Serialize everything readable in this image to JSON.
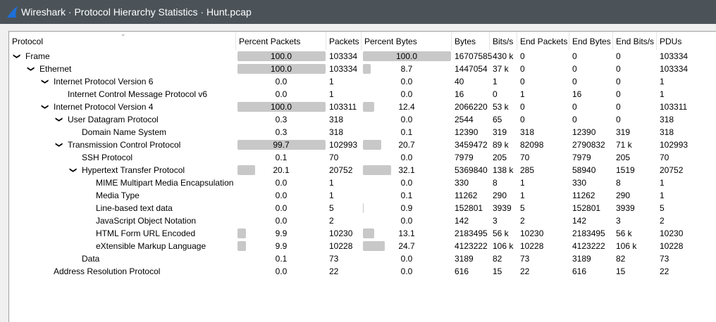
{
  "window": {
    "title": "Wireshark · Protocol Hierarchy Statistics · Hunt.pcap",
    "icon": "wireshark-fin-icon"
  },
  "columns": [
    "Protocol",
    "Percent Packets",
    "Packets",
    "Percent Bytes",
    "Bytes",
    "Bits/s",
    "End Packets",
    "End Bytes",
    "End Bits/s",
    "PDUs"
  ],
  "rows": [
    {
      "level": 0,
      "expanded": true,
      "protocol": "Frame",
      "percent_packets": "100.0",
      "packets": "103334",
      "percent_bytes": "100.0",
      "bytes": "16707585",
      "bits_s": "430 k",
      "end_packets": "0",
      "end_bytes": "0",
      "end_bits_s": "0",
      "pdus": "103334"
    },
    {
      "level": 1,
      "expanded": true,
      "protocol": "Ethernet",
      "percent_packets": "100.0",
      "packets": "103334",
      "percent_bytes": "8.7",
      "bytes": "1447054",
      "bits_s": "37 k",
      "end_packets": "0",
      "end_bytes": "0",
      "end_bits_s": "0",
      "pdus": "103334"
    },
    {
      "level": 2,
      "expanded": true,
      "protocol": "Internet Protocol Version 6",
      "percent_packets": "0.0",
      "packets": "1",
      "percent_bytes": "0.0",
      "bytes": "40",
      "bits_s": "1",
      "end_packets": "0",
      "end_bytes": "0",
      "end_bits_s": "0",
      "pdus": "1"
    },
    {
      "level": 3,
      "protocol": "Internet Control Message Protocol v6",
      "percent_packets": "0.0",
      "packets": "1",
      "percent_bytes": "0.0",
      "bytes": "16",
      "bits_s": "0",
      "end_packets": "1",
      "end_bytes": "16",
      "end_bits_s": "0",
      "pdus": "1"
    },
    {
      "level": 2,
      "expanded": true,
      "protocol": "Internet Protocol Version 4",
      "percent_packets": "100.0",
      "packets": "103311",
      "percent_bytes": "12.4",
      "bytes": "2066220",
      "bits_s": "53 k",
      "end_packets": "0",
      "end_bytes": "0",
      "end_bits_s": "0",
      "pdus": "103311"
    },
    {
      "level": 3,
      "expanded": true,
      "protocol": "User Datagram Protocol",
      "percent_packets": "0.3",
      "packets": "318",
      "percent_bytes": "0.0",
      "bytes": "2544",
      "bits_s": "65",
      "end_packets": "0",
      "end_bytes": "0",
      "end_bits_s": "0",
      "pdus": "318"
    },
    {
      "level": 4,
      "protocol": "Domain Name System",
      "percent_packets": "0.3",
      "packets": "318",
      "percent_bytes": "0.1",
      "bytes": "12390",
      "bits_s": "319",
      "end_packets": "318",
      "end_bytes": "12390",
      "end_bits_s": "319",
      "pdus": "318"
    },
    {
      "level": 3,
      "expanded": true,
      "protocol": "Transmission Control Protocol",
      "percent_packets": "99.7",
      "packets": "102993",
      "percent_bytes": "20.7",
      "bytes": "3459472",
      "bits_s": "89 k",
      "end_packets": "82098",
      "end_bytes": "2790832",
      "end_bits_s": "71 k",
      "pdus": "102993"
    },
    {
      "level": 4,
      "protocol": "SSH Protocol",
      "percent_packets": "0.1",
      "packets": "70",
      "percent_bytes": "0.0",
      "bytes": "7979",
      "bits_s": "205",
      "end_packets": "70",
      "end_bytes": "7979",
      "end_bits_s": "205",
      "pdus": "70"
    },
    {
      "level": 4,
      "expanded": true,
      "protocol": "Hypertext Transfer Protocol",
      "percent_packets": "20.1",
      "packets": "20752",
      "percent_bytes": "32.1",
      "bytes": "5369840",
      "bits_s": "138 k",
      "end_packets": "285",
      "end_bytes": "58940",
      "end_bits_s": "1519",
      "pdus": "20752"
    },
    {
      "level": 5,
      "protocol": "MIME Multipart Media Encapsulation",
      "percent_packets": "0.0",
      "packets": "1",
      "percent_bytes": "0.0",
      "bytes": "330",
      "bits_s": "8",
      "end_packets": "1",
      "end_bytes": "330",
      "end_bits_s": "8",
      "pdus": "1"
    },
    {
      "level": 5,
      "protocol": "Media Type",
      "percent_packets": "0.0",
      "packets": "1",
      "percent_bytes": "0.1",
      "bytes": "11262",
      "bits_s": "290",
      "end_packets": "1",
      "end_bytes": "11262",
      "end_bits_s": "290",
      "pdus": "1"
    },
    {
      "level": 5,
      "protocol": "Line-based text data",
      "percent_packets": "0.0",
      "packets": "5",
      "percent_bytes": "0.9",
      "bytes": "152801",
      "bits_s": "3939",
      "end_packets": "5",
      "end_bytes": "152801",
      "end_bits_s": "3939",
      "pdus": "5"
    },
    {
      "level": 5,
      "protocol": "JavaScript Object Notation",
      "percent_packets": "0.0",
      "packets": "2",
      "percent_bytes": "0.0",
      "bytes": "142",
      "bits_s": "3",
      "end_packets": "2",
      "end_bytes": "142",
      "end_bits_s": "3",
      "pdus": "2"
    },
    {
      "level": 5,
      "protocol": "HTML Form URL Encoded",
      "percent_packets": "9.9",
      "packets": "10230",
      "percent_bytes": "13.1",
      "bytes": "2183495",
      "bits_s": "56 k",
      "end_packets": "10230",
      "end_bytes": "2183495",
      "end_bits_s": "56 k",
      "pdus": "10230"
    },
    {
      "level": 5,
      "protocol": "eXtensible Markup Language",
      "percent_packets": "9.9",
      "packets": "10228",
      "percent_bytes": "24.7",
      "bytes": "4123222",
      "bits_s": "106 k",
      "end_packets": "10228",
      "end_bytes": "4123222",
      "end_bits_s": "106 k",
      "pdus": "10228"
    },
    {
      "level": 4,
      "protocol": "Data",
      "percent_packets": "0.1",
      "packets": "73",
      "percent_bytes": "0.0",
      "bytes": "3189",
      "bits_s": "82",
      "end_packets": "73",
      "end_bytes": "3189",
      "end_bits_s": "82",
      "pdus": "73"
    },
    {
      "level": 2,
      "protocol": "Address Resolution Protocol",
      "percent_packets": "0.0",
      "packets": "22",
      "percent_bytes": "0.0",
      "bytes": "616",
      "bits_s": "15",
      "end_packets": "22",
      "end_bytes": "616",
      "end_bits_s": "15",
      "pdus": "22"
    }
  ]
}
